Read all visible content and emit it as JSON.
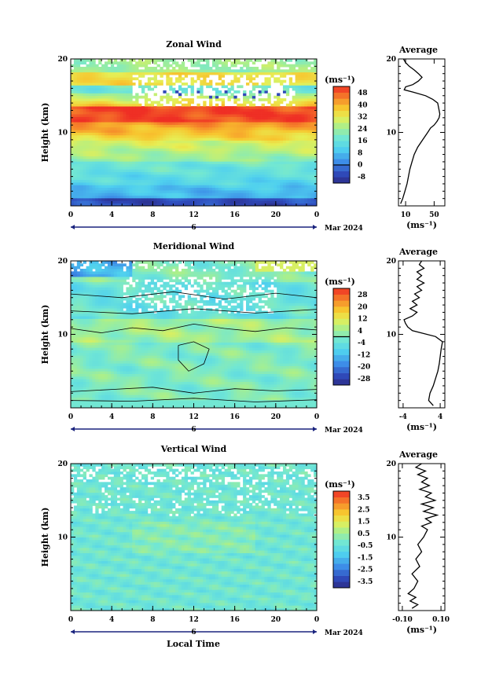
{
  "figure": {
    "xlabel": "Local Time",
    "ylabel": "Height (km)",
    "date_label": "Mar 2024",
    "day_label": "6",
    "x_ticks": [
      "0",
      "4",
      "8",
      "12",
      "16",
      "20",
      "0"
    ],
    "y_ticks": [
      "10",
      "20"
    ],
    "average_title": "Average",
    "colorbar_unit": "(ms⁻¹)",
    "avg_unit": "(ms⁻¹)"
  },
  "chart_data": [
    {
      "type": "heatmap",
      "title": "Zonal Wind",
      "xlabel": "Local Time",
      "ylabel": "Height (km)",
      "xlim": [
        0,
        24
      ],
      "ylim": [
        0,
        20
      ],
      "colorbar": {
        "unit": "(ms⁻¹)",
        "ticks": [
          "48",
          "40",
          "32",
          "24",
          "16",
          "8",
          "0",
          "-8"
        ],
        "range": [
          -12,
          52
        ]
      },
      "average_profile": {
        "title": "Average",
        "xlabel": "(ms⁻¹)",
        "x_ticks": [
          "10",
          "50"
        ],
        "xlim": [
          0,
          65
        ],
        "points": [
          [
            3,
            0.3
          ],
          [
            6,
            1
          ],
          [
            9,
            2
          ],
          [
            12,
            3
          ],
          [
            14,
            4
          ],
          [
            16,
            5
          ],
          [
            19,
            6
          ],
          [
            22,
            7
          ],
          [
            27,
            8
          ],
          [
            34,
            9
          ],
          [
            41,
            10
          ],
          [
            45,
            10.6
          ],
          [
            50,
            11
          ],
          [
            54,
            11.5
          ],
          [
            57,
            12
          ],
          [
            58,
            12.5
          ],
          [
            57,
            13
          ],
          [
            55,
            14
          ],
          [
            48,
            14.5
          ],
          [
            38,
            15
          ],
          [
            20,
            15.5
          ],
          [
            8,
            15.8
          ],
          [
            10,
            16.2
          ],
          [
            20,
            16.5
          ],
          [
            28,
            17
          ],
          [
            33,
            17.5
          ],
          [
            28,
            18
          ],
          [
            22,
            18.5
          ],
          [
            15,
            19
          ],
          [
            10,
            19.5
          ],
          [
            7,
            20
          ]
        ]
      }
    },
    {
      "type": "heatmap",
      "title": "Meridional Wind",
      "xlabel": "Local Time",
      "ylabel": "Height (km)",
      "xlim": [
        0,
        24
      ],
      "ylim": [
        0,
        20
      ],
      "colorbar": {
        "unit": "(ms⁻¹)",
        "ticks": [
          "28",
          "20",
          "12",
          "4",
          "-4",
          "-12",
          "-20",
          "-28"
        ],
        "range": [
          -32,
          32
        ]
      },
      "average_profile": {
        "title": "Average",
        "xlabel": "(ms⁻¹)",
        "x_ticks": [
          "-4",
          "4"
        ],
        "xlim": [
          -5,
          5
        ],
        "points": [
          [
            2.5,
            0.3
          ],
          [
            1.5,
            1
          ],
          [
            1.8,
            2
          ],
          [
            2.5,
            3
          ],
          [
            3,
            4
          ],
          [
            3.5,
            5
          ],
          [
            3.8,
            6
          ],
          [
            4,
            7
          ],
          [
            4.2,
            8
          ],
          [
            4.5,
            9
          ],
          [
            3,
            9.7
          ],
          [
            -2,
            10.5
          ],
          [
            -3,
            11
          ],
          [
            -3.5,
            11.5
          ],
          [
            -3.8,
            12
          ],
          [
            -2,
            12.5
          ],
          [
            -1,
            13
          ],
          [
            -2.5,
            13.5
          ],
          [
            -1,
            14
          ],
          [
            -2,
            14.5
          ],
          [
            -0.5,
            15
          ],
          [
            -1.5,
            15.5
          ],
          [
            0,
            16
          ],
          [
            -1,
            16.5
          ],
          [
            0.5,
            17
          ],
          [
            -1,
            17.5
          ],
          [
            0,
            18
          ],
          [
            -1,
            18.5
          ],
          [
            0.5,
            19
          ],
          [
            -0.5,
            19.5
          ],
          [
            0,
            20
          ]
        ]
      }
    },
    {
      "type": "heatmap",
      "title": "Vertical Wind",
      "xlabel": "Local Time",
      "ylabel": "Height (km)",
      "xlim": [
        0,
        24
      ],
      "ylim": [
        0,
        20
      ],
      "colorbar": {
        "unit": "(ms⁻¹)",
        "ticks": [
          "3.5",
          "2.5",
          "1.5",
          "0.5",
          "-0.5",
          "-1.5",
          "-2.5",
          "-3.5"
        ],
        "range": [
          -4,
          4
        ]
      },
      "average_profile": {
        "title": "Average",
        "xlabel": "(ms⁻¹)",
        "x_ticks": [
          "-0.10",
          "0.10"
        ],
        "xlim": [
          -0.12,
          0.12
        ],
        "points": [
          [
            -0.05,
            0.3
          ],
          [
            -0.02,
            0.8
          ],
          [
            -0.06,
            1.3
          ],
          [
            -0.03,
            1.8
          ],
          [
            -0.07,
            2.3
          ],
          [
            -0.04,
            3
          ],
          [
            -0.02,
            4
          ],
          [
            -0.05,
            5
          ],
          [
            -0.01,
            6
          ],
          [
            -0.03,
            7
          ],
          [
            0.0,
            8
          ],
          [
            -0.02,
            9
          ],
          [
            0.01,
            10
          ],
          [
            0.03,
            11
          ],
          [
            0.0,
            11.5
          ],
          [
            0.05,
            12
          ],
          [
            0.02,
            12.5
          ],
          [
            0.08,
            13
          ],
          [
            0.01,
            13.5
          ],
          [
            0.06,
            14
          ],
          [
            0.0,
            14.5
          ],
          [
            0.07,
            15
          ],
          [
            0.02,
            15.5
          ],
          [
            0.05,
            16
          ],
          [
            -0.01,
            16.5
          ],
          [
            0.04,
            17
          ],
          [
            0.0,
            17.5
          ],
          [
            0.03,
            18
          ],
          [
            -0.02,
            18.5
          ],
          [
            0.02,
            19
          ],
          [
            -0.03,
            19.5
          ],
          [
            0.0,
            20
          ]
        ]
      }
    }
  ]
}
